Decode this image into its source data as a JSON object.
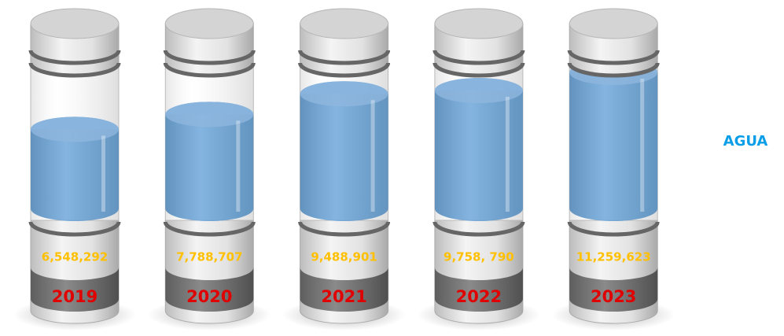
{
  "chart_data": {
    "type": "cylinder",
    "categories": [
      "2019",
      "2020",
      "2021",
      "2022",
      "2023"
    ],
    "series": [
      {
        "name": "AGUA",
        "color": "#5b9bd5",
        "values": [
          6548292,
          7788707,
          9488901,
          9758790,
          11259623
        ],
        "value_labels": [
          "6,548,292",
          "7,788,707",
          "9,488,901",
          "9,758, 790",
          "11,259,623"
        ]
      }
    ],
    "value_label_color": "#ffc000",
    "legend_color": "#0a9ee8"
  }
}
